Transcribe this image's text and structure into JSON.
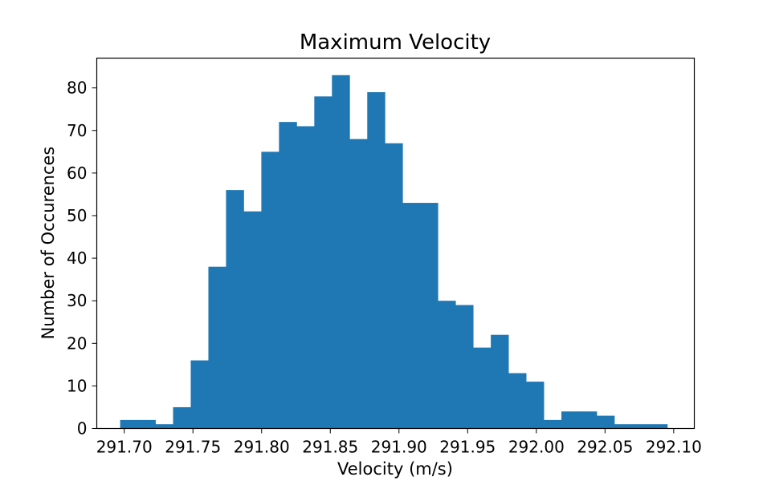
{
  "chart_data": {
    "type": "bar",
    "title": "Maximum Velocity",
    "xlabel": "Velocity (m/s)",
    "ylabel": "Number of Occurences",
    "bar_color": "#1f77b4",
    "grid": false,
    "legend": "none",
    "xlim": [
      291.68,
      292.115
    ],
    "ylim": [
      0,
      87
    ],
    "bin_start": 291.697,
    "bin_width": 0.01285,
    "values": [
      2,
      2,
      1,
      5,
      16,
      38,
      56,
      51,
      65,
      72,
      71,
      78,
      83,
      68,
      79,
      67,
      53,
      53,
      30,
      29,
      19,
      22,
      13,
      11,
      2,
      4,
      4,
      3,
      1,
      1,
      1
    ],
    "xticks": [
      291.7,
      291.75,
      291.8,
      291.85,
      291.9,
      291.95,
      292.0,
      292.05,
      292.1
    ],
    "xtick_labels": [
      "291.70",
      "291.75",
      "291.80",
      "291.85",
      "291.90",
      "291.95",
      "292.00",
      "292.05",
      "292.10"
    ],
    "yticks": [
      0,
      10,
      20,
      30,
      40,
      50,
      60,
      70,
      80
    ],
    "ytick_labels": [
      "0",
      "10",
      "20",
      "30",
      "40",
      "50",
      "60",
      "70",
      "80"
    ]
  }
}
